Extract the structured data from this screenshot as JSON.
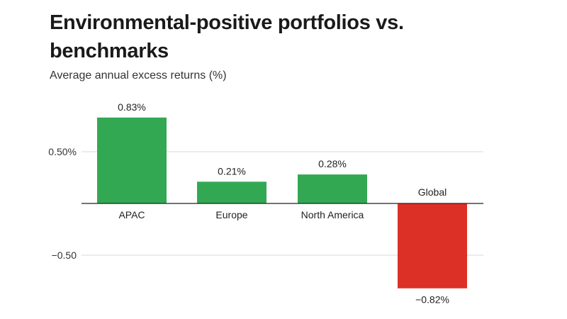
{
  "chart_data": {
    "type": "bar",
    "title": "Environmental-positive portfolios vs. benchmarks",
    "subtitle": "Average annual excess returns (%)",
    "xlabel": "",
    "ylabel": "",
    "categories": [
      "APAC",
      "Europe",
      "North America",
      "Global"
    ],
    "values": [
      0.83,
      0.21,
      0.28,
      -0.82
    ],
    "value_labels": [
      "0.83%",
      "0.21%",
      "0.28%",
      "−0.82%"
    ],
    "y_ticks": [
      {
        "value": 0.5,
        "label": "0.50%"
      },
      {
        "value": -0.5,
        "label": "−0.50"
      }
    ],
    "ylim": [
      -0.85,
      0.88
    ],
    "grid": true,
    "colors": {
      "positive": "#33a853",
      "negative": "#dc2f26",
      "grid": "#d9d9d9",
      "axis": "#222222"
    }
  }
}
